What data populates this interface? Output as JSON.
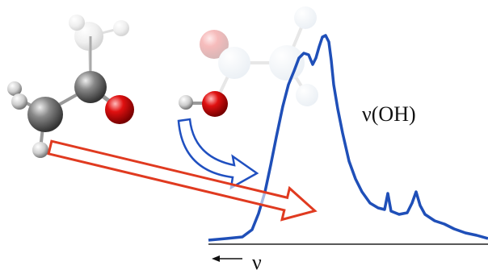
{
  "labels": {
    "band": "ν(OH)",
    "axis": "ν"
  }
}
